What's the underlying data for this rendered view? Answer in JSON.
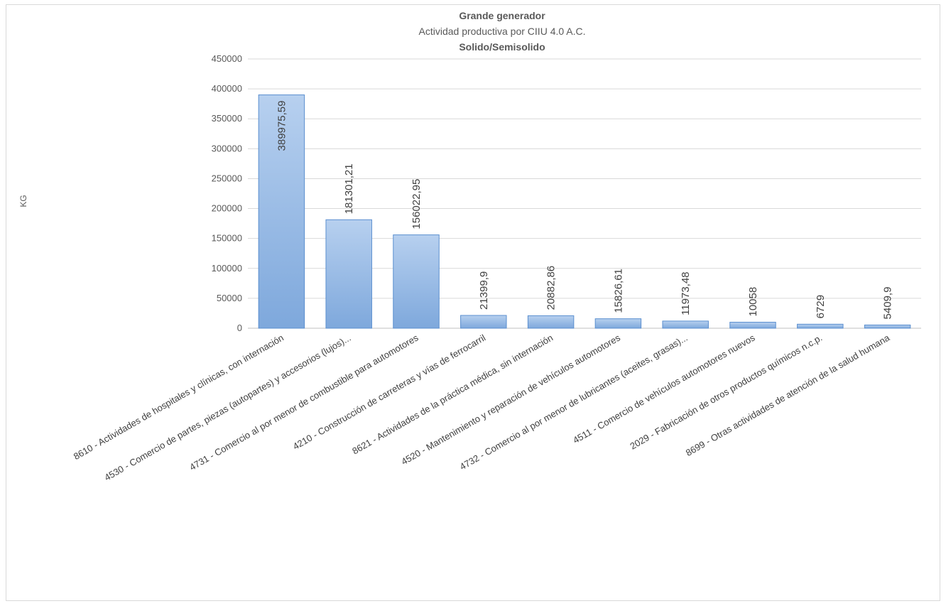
{
  "chart_data": {
    "type": "bar",
    "title": "Grande generador",
    "subtitle": "Actividad productiva por CIIU 4.0 A.C.",
    "subtitle2": "Solido/Semisolido",
    "xlabel": "",
    "ylabel": "KG",
    "ylim": [
      0,
      450000
    ],
    "yticks": [
      0,
      50000,
      100000,
      150000,
      200000,
      250000,
      300000,
      350000,
      400000,
      450000
    ],
    "grid": true,
    "legend": "none",
    "colors": {
      "bar_fill_top": "#b7d0ef",
      "bar_fill_bottom": "#7ea8dc",
      "bar_stroke": "#5b8fcf",
      "grid": "#d9d9d9"
    },
    "categories": [
      "8610 - Actividades de hospitales y clínicas, con internación",
      "4530 - Comercio de partes, piezas (autopartes) y accesorios (lujos)...",
      "4731 - Comercio al por menor de combustible para automotores",
      "4210 - Construcción de carreteras y vías de ferrocarril",
      "8621 - Actividades de la práctica médica, sin internación",
      "4520 - Mantenimiento y reparación de vehículos automotores",
      "4732 - Comercio al por menor de lubricantes (aceites, grasas)...",
      "4511 - Comercio de vehículos automotores nuevos",
      "2029 - Fabricación de otros productos químicos n.c.p.",
      "8699 - Otras actividades de atención de la salud humana"
    ],
    "values": [
      389975.59,
      181301.21,
      156022.95,
      21399.9,
      20882.86,
      15826.61,
      11973.48,
      10058,
      6729,
      5409.9
    ],
    "data_labels": [
      "389975,59",
      "181301,21",
      "156022,95",
      "21399,9",
      "20882,86",
      "15826,61",
      "11973,48",
      "10058",
      "6729",
      "5409,9"
    ]
  }
}
